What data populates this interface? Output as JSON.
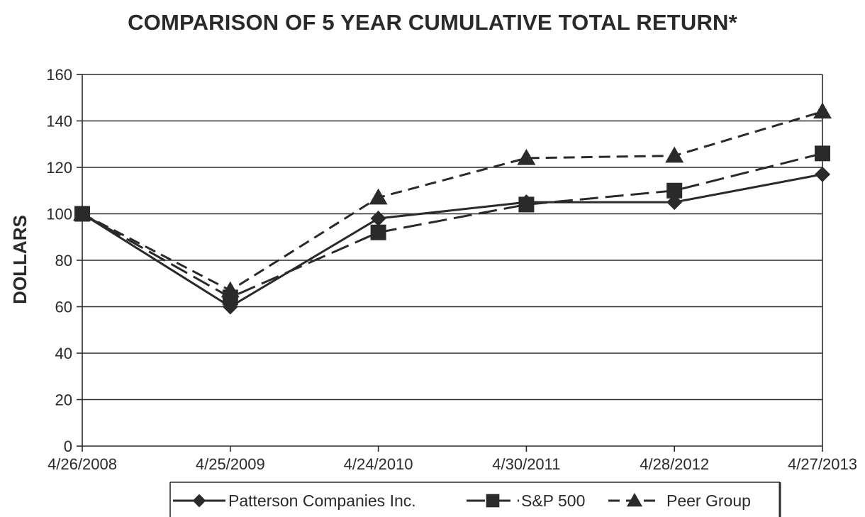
{
  "chart_data": {
    "type": "line",
    "title": "COMPARISON OF 5 YEAR CUMULATIVE TOTAL RETURN*",
    "xlabel": "",
    "ylabel": "DOLLARS",
    "categories": [
      "4/26/2008",
      "4/25/2009",
      "4/24/2010",
      "4/30/2011",
      "4/28/2012",
      "4/27/2013"
    ],
    "ylim": [
      0,
      160
    ],
    "yticks": [
      0,
      20,
      40,
      60,
      80,
      100,
      120,
      140,
      160
    ],
    "grid": true,
    "legend_position": "bottom",
    "series": [
      {
        "name": "Patterson Companies Inc.",
        "values": [
          100,
          60,
          98,
          105,
          105,
          117
        ],
        "line_style": "solid",
        "marker": "diamond",
        "color": "#2a2a2a"
      },
      {
        "name": "S&P 500",
        "values": [
          100,
          64,
          92,
          104,
          110,
          126
        ],
        "line_style": "long-dash",
        "marker": "square",
        "color": "#2a2a2a"
      },
      {
        "name": "Peer Group",
        "values": [
          100,
          67,
          107,
          124,
          125,
          144
        ],
        "line_style": "dash",
        "marker": "triangle",
        "color": "#2a2a2a"
      }
    ]
  }
}
